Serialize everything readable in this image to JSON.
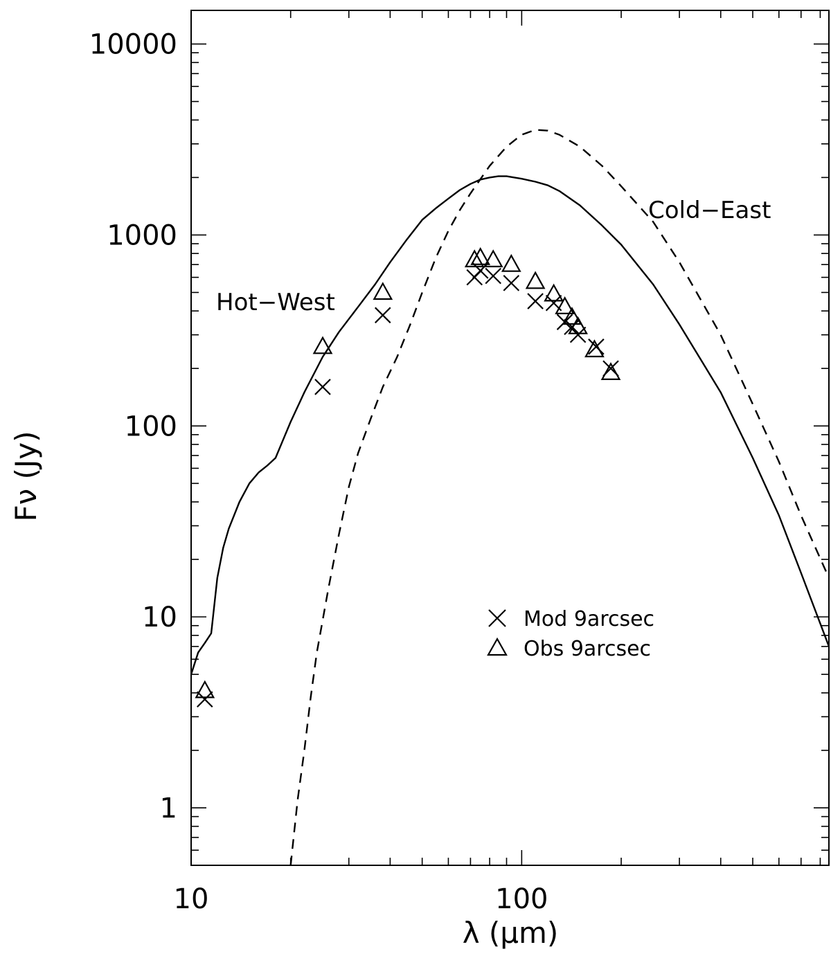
{
  "chart_data": {
    "type": "line",
    "xlabel": "λ (μm)",
    "ylabel": "Fν (Jy)",
    "xscale": "log",
    "yscale": "log",
    "xlim": [
      10,
      850
    ],
    "ylim": [
      0.5,
      15000
    ],
    "xticks": [
      {
        "value": 10,
        "label": "10"
      },
      {
        "value": 100,
        "label": "100"
      }
    ],
    "yticks": [
      {
        "value": 1,
        "label": "1"
      },
      {
        "value": 10,
        "label": "10"
      },
      {
        "value": 100,
        "label": "100"
      },
      {
        "value": 1000,
        "label": "1000"
      },
      {
        "value": 10000,
        "label": "10000"
      }
    ],
    "grid": false,
    "legend": "center-right",
    "annotations": [
      {
        "text": "Hot−West",
        "x": 19.5,
        "y": 430
      },
      {
        "text": "Cold−East",
        "x": 420,
        "y": 1300
      }
    ],
    "lines": [
      {
        "id": "hot-west",
        "style": "solid",
        "x": [
          10,
          10.5,
          11,
          11.5,
          12,
          12.5,
          13,
          14,
          15,
          16,
          17,
          18,
          19,
          20,
          22,
          25,
          28,
          32,
          36,
          40,
          45,
          50,
          55,
          60,
          65,
          70,
          75,
          80,
          85,
          90,
          95,
          100,
          110,
          120,
          130,
          150,
          175,
          200,
          250,
          300,
          400,
          500,
          600,
          700,
          850
        ],
        "y": [
          5,
          6.5,
          7.3,
          8.2,
          16,
          23,
          29,
          40,
          50,
          57,
          62,
          68,
          85,
          105,
          150,
          230,
          310,
          420,
          550,
          720,
          950,
          1200,
          1380,
          1550,
          1720,
          1850,
          1950,
          2000,
          2030,
          2030,
          2000,
          1970,
          1900,
          1820,
          1700,
          1430,
          1120,
          890,
          550,
          340,
          150,
          68,
          34,
          17,
          7
        ]
      },
      {
        "id": "cold-east",
        "style": "dashed",
        "x": [
          20,
          21,
          22,
          23,
          24,
          26,
          28,
          30,
          32,
          35,
          38,
          42,
          46,
          50,
          55,
          60,
          65,
          70,
          80,
          90,
          100,
          110,
          120,
          130,
          150,
          175,
          200,
          250,
          300,
          400,
          500,
          600,
          700,
          850
        ],
        "y": [
          0.5,
          1.1,
          2.0,
          3.8,
          6.5,
          14,
          27,
          48,
          72,
          110,
          160,
          230,
          340,
          500,
          760,
          1050,
          1350,
          1650,
          2300,
          2900,
          3350,
          3550,
          3520,
          3350,
          2900,
          2300,
          1800,
          1170,
          720,
          300,
          130,
          65,
          34,
          16
        ]
      }
    ],
    "series": [
      {
        "name": "Mod 9arcsec",
        "marker": "x",
        "points": [
          [
            11,
            3.7
          ],
          [
            25,
            160
          ],
          [
            38,
            380
          ],
          [
            72,
            600
          ],
          [
            75,
            650
          ],
          [
            82,
            610
          ],
          [
            93,
            560
          ],
          [
            110,
            450
          ],
          [
            125,
            440
          ],
          [
            135,
            350
          ],
          [
            142,
            330
          ],
          [
            148,
            300
          ],
          [
            168,
            260
          ],
          [
            186,
            200
          ]
        ]
      },
      {
        "name": "Obs 9arcsec",
        "marker": "triangle",
        "points": [
          [
            11,
            4.1
          ],
          [
            25,
            260
          ],
          [
            38,
            500
          ],
          [
            72,
            740
          ],
          [
            75,
            760
          ],
          [
            82,
            740
          ],
          [
            93,
            700
          ],
          [
            110,
            570
          ],
          [
            125,
            490
          ],
          [
            135,
            420
          ],
          [
            142,
            370
          ],
          [
            148,
            330
          ],
          [
            166,
            250
          ],
          [
            186,
            190
          ]
        ]
      }
    ]
  }
}
